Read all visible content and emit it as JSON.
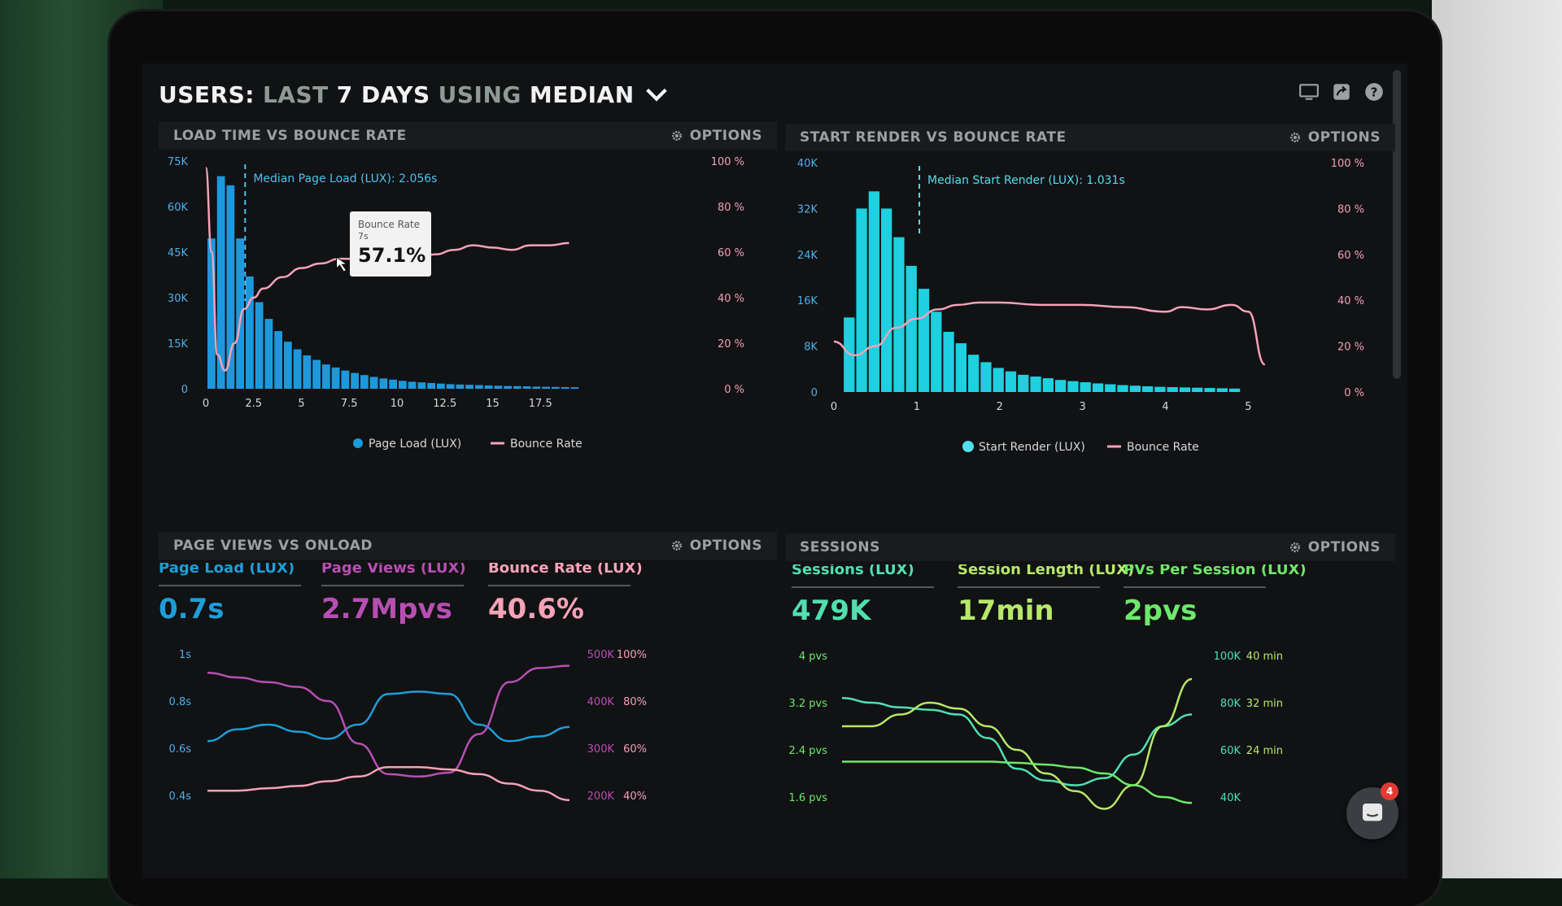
{
  "header": {
    "part1": "USERS:",
    "part2": "LAST",
    "part3": "7 DAYS",
    "part4": "USING",
    "part5": "MEDIAN"
  },
  "top_icons": [
    "monitor-icon",
    "share-icon",
    "help-icon"
  ],
  "options_label": "OPTIONS",
  "panels": {
    "load_time": {
      "title": "LOAD TIME VS BOUNCE RATE",
      "annotation": "Median Page Load (LUX): 2.056s",
      "tooltip": {
        "title": "Bounce Rate",
        "subtitle": "7s",
        "value": "57.1%"
      },
      "y_left_ticks": [
        "75K",
        "60K",
        "45K",
        "30K",
        "15K",
        "0"
      ],
      "y_right_ticks": [
        "100 %",
        "80 %",
        "60 %",
        "40 %",
        "20 %",
        "0 %"
      ],
      "x_ticks": [
        "0",
        "2.5",
        "5",
        "7.5",
        "10",
        "12.5",
        "15",
        "17.5"
      ],
      "legend": [
        "Page Load (LUX)",
        "Bounce Rate"
      ]
    },
    "start_render": {
      "title": "START RENDER VS BOUNCE RATE",
      "annotation": "Median Start Render (LUX): 1.031s",
      "y_left_ticks": [
        "40K",
        "32K",
        "24K",
        "16K",
        "8K",
        "0"
      ],
      "y_right_ticks": [
        "100 %",
        "80 %",
        "60 %",
        "40 %",
        "20 %",
        "0 %"
      ],
      "x_ticks": [
        "0",
        "1",
        "2",
        "3",
        "4",
        "5"
      ],
      "legend": [
        "Start Render (LUX)",
        "Bounce Rate"
      ]
    },
    "page_views": {
      "title": "PAGE VIEWS VS ONLOAD",
      "metrics": [
        {
          "label": "Page Load (LUX)",
          "value": "0.7s",
          "color": "#1e9ed8"
        },
        {
          "label": "Page Views (LUX)",
          "value": "2.7Mpvs",
          "color": "#b74fb3"
        },
        {
          "label": "Bounce Rate (LUX)",
          "value": "40.6%",
          "color": "#f6a2b8"
        }
      ],
      "y_left_ticks": [
        "1s",
        "0.8s",
        "0.6s",
        "0.4s"
      ],
      "y_mid_ticks": [
        "500K",
        "400K",
        "300K",
        "200K"
      ],
      "y_right_ticks": [
        "100%",
        "80%",
        "60%",
        "40%"
      ]
    },
    "sessions": {
      "title": "SESSIONS",
      "metrics": [
        {
          "label": "Sessions (LUX)",
          "value": "479K",
          "color": "#4fe0b0"
        },
        {
          "label": "Session Length (LUX)",
          "value": "17min",
          "color": "#b7e86a"
        },
        {
          "label": "PVs Per Session (LUX)",
          "value": "2pvs",
          "color": "#6ee86a"
        }
      ],
      "y_left_ticks": [
        "4 pvs",
        "3.2 pvs",
        "2.4 pvs",
        "1.6 pvs"
      ],
      "y_mid_ticks": [
        "100K",
        "80K",
        "60K",
        "40K"
      ],
      "y_right_ticks": [
        "40 min",
        "32 min",
        "24 min",
        ""
      ]
    }
  },
  "chat": {
    "badge": "4"
  },
  "chart_data": [
    {
      "type": "bar",
      "title": "LOAD TIME VS BOUNCE RATE",
      "x_label": "Page Load (LUX)",
      "ylim": [
        0,
        75000
      ],
      "x": [
        0.5,
        1,
        1.5,
        2,
        2.5,
        3,
        3.5,
        4,
        4.5,
        5,
        5.5,
        6,
        6.5,
        7,
        7.5,
        8,
        8.5,
        9,
        9.5,
        10,
        10.5,
        11,
        11.5,
        12,
        12.5,
        13,
        13.5,
        14,
        14.5,
        15,
        15.5,
        16,
        16.5,
        17,
        17.5,
        18,
        18.5,
        19,
        19.5
      ],
      "values": [
        49500,
        70000,
        67000,
        49500,
        37000,
        28500,
        23000,
        19000,
        15500,
        13000,
        11000,
        9500,
        8000,
        7000,
        6000,
        5200,
        4500,
        3900,
        3400,
        3000,
        2600,
        2300,
        2100,
        1900,
        1700,
        1500,
        1400,
        1300,
        1200,
        1100,
        1000,
        900,
        850,
        800,
        700,
        650,
        600,
        550,
        500
      ],
      "line_series": {
        "name": "Bounce Rate",
        "ylim": [
          0,
          100
        ],
        "x": [
          0,
          0.3,
          0.6,
          1,
          1.5,
          2,
          2.5,
          3,
          4,
          5,
          6,
          7,
          8,
          9,
          10,
          11,
          12,
          13,
          14,
          15,
          16,
          17,
          18,
          19
        ],
        "values": [
          97,
          60,
          15,
          8,
          20,
          35,
          40,
          44,
          49,
          53,
          55,
          57.1,
          57,
          58,
          57,
          58,
          59,
          61,
          63,
          62,
          61,
          63,
          63,
          64
        ]
      }
    },
    {
      "type": "bar",
      "title": "START RENDER VS BOUNCE RATE",
      "x_label": "Start Render (LUX)",
      "ylim": [
        0,
        40000
      ],
      "x": [
        0.25,
        0.4,
        0.55,
        0.7,
        0.85,
        1.0,
        1.15,
        1.3,
        1.45,
        1.6,
        1.75,
        1.9,
        2.05,
        2.2,
        2.35,
        2.5,
        2.65,
        2.8,
        2.95,
        3.1,
        3.25,
        3.4,
        3.55,
        3.7,
        3.85,
        4.0,
        4.15,
        4.3,
        4.45,
        4.6,
        4.75,
        4.9
      ],
      "values": [
        13000,
        32000,
        35000,
        32000,
        27000,
        22000,
        18000,
        14000,
        10500,
        8500,
        6500,
        5200,
        4200,
        3600,
        3000,
        2700,
        2400,
        2100,
        1900,
        1700,
        1500,
        1350,
        1200,
        1100,
        1000,
        900,
        850,
        800,
        750,
        700,
        650,
        600
      ],
      "line_series": {
        "name": "Bounce Rate",
        "ylim": [
          0,
          100
        ],
        "x": [
          0,
          0.25,
          0.5,
          0.75,
          1.0,
          1.25,
          1.5,
          1.75,
          2.0,
          2.5,
          3.0,
          3.5,
          4.0,
          4.2,
          4.5,
          4.8,
          5.0,
          5.2
        ],
        "values": [
          22,
          16,
          20,
          28,
          32,
          36,
          38,
          39,
          39,
          38,
          38,
          37,
          35,
          37,
          36,
          38,
          35,
          12
        ]
      }
    },
    {
      "type": "line",
      "title": "PAGE VIEWS VS ONLOAD",
      "x": [
        0,
        1,
        2,
        3,
        4,
        5,
        6,
        7,
        8,
        9,
        10,
        11,
        12
      ],
      "series": [
        {
          "name": "Page Load (LUX)",
          "axis": "left",
          "ylim": [
            0.4,
            1.0
          ],
          "values": [
            0.63,
            0.68,
            0.7,
            0.67,
            0.64,
            0.7,
            0.83,
            0.84,
            0.83,
            0.7,
            0.63,
            0.65,
            0.69
          ]
        },
        {
          "name": "Page Views (LUX)",
          "axis": "mid",
          "ylim": [
            200000,
            500000
          ],
          "values": [
            460000,
            450000,
            440000,
            430000,
            400000,
            310000,
            245000,
            240000,
            248000,
            330000,
            440000,
            470000,
            475000
          ]
        },
        {
          "name": "Bounce Rate (LUX)",
          "axis": "right",
          "ylim": [
            40,
            100
          ],
          "values": [
            42,
            42,
            43,
            44,
            46,
            48,
            52,
            52,
            51,
            49,
            45,
            42,
            38
          ]
        }
      ]
    },
    {
      "type": "line",
      "title": "SESSIONS",
      "x": [
        0,
        1,
        2,
        3,
        4,
        5,
        6,
        7,
        8,
        9,
        10,
        11,
        12
      ],
      "series": [
        {
          "name": "Sessions (LUX)",
          "axis": "mid",
          "ylim": [
            40000,
            100000
          ],
          "values": [
            82000,
            80000,
            78000,
            77000,
            75000,
            65000,
            52000,
            47000,
            45000,
            48000,
            58000,
            70000,
            75000
          ]
        },
        {
          "name": "Session Length (LUX)",
          "axis": "right",
          "ylim": [
            16,
            40
          ],
          "values": [
            28,
            28,
            30,
            32,
            31,
            28,
            24,
            20,
            17,
            14,
            18,
            28,
            36
          ]
        },
        {
          "name": "PVs Per Session (LUX)",
          "axis": "left",
          "ylim": [
            1.6,
            4.0
          ],
          "values": [
            2.2,
            2.2,
            2.2,
            2.2,
            2.2,
            2.2,
            2.18,
            2.15,
            2.1,
            2.0,
            1.8,
            1.6,
            1.5
          ]
        }
      ]
    }
  ]
}
